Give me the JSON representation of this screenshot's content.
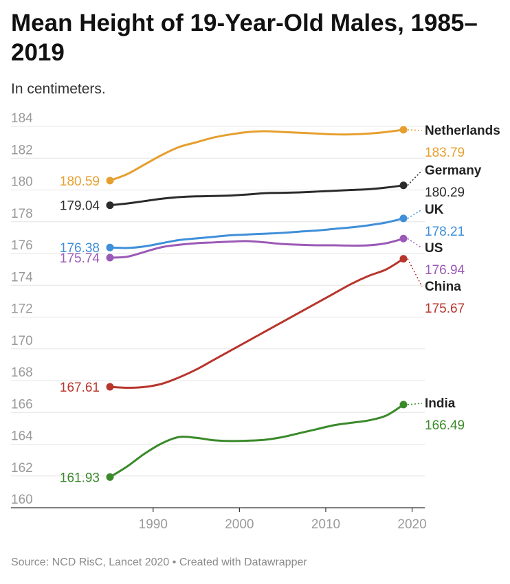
{
  "header": {
    "title": "Mean Height of 19-Year-Old Males, 1985–2019",
    "subtitle": "In centimeters."
  },
  "footer": {
    "source": "Source: NCD RisC, Lancet 2020 • Created with Datawrapper"
  },
  "chart_data": {
    "type": "line",
    "title": "Mean Height of 19-Year-Old Males, 1985–2019",
    "subtitle": "In centimeters.",
    "xlabel": "",
    "ylabel": "",
    "xlim": [
      1985,
      2019
    ],
    "ylim": [
      160,
      184
    ],
    "x_ticks": [
      1990,
      2000,
      2010,
      2020
    ],
    "y_ticks": [
      160,
      162,
      164,
      166,
      168,
      170,
      172,
      174,
      176,
      178,
      180,
      182,
      184
    ],
    "grid": true,
    "legend": "direct labels at line ends",
    "x": [
      1985,
      1987,
      1989,
      1991,
      1993,
      1995,
      1997,
      1999,
      2001,
      2003,
      2005,
      2007,
      2009,
      2011,
      2013,
      2015,
      2017,
      2019
    ],
    "series": [
      {
        "name": "Netherlands",
        "color": "#e69f2e",
        "start_label": "180.59",
        "end_label": "183.79",
        "values": [
          180.59,
          181.0,
          181.6,
          182.2,
          182.7,
          183.0,
          183.3,
          183.5,
          183.65,
          183.7,
          183.65,
          183.6,
          183.55,
          183.5,
          183.5,
          183.55,
          183.65,
          183.79
        ]
      },
      {
        "name": "Germany",
        "color": "#2b2b2b",
        "start_label": "179.04",
        "end_label": "180.29",
        "values": [
          179.04,
          179.15,
          179.3,
          179.45,
          179.55,
          179.6,
          179.62,
          179.65,
          179.72,
          179.8,
          179.82,
          179.85,
          179.9,
          179.95,
          180.0,
          180.05,
          180.15,
          180.29
        ]
      },
      {
        "name": "UK",
        "color": "#3f8fd9",
        "start_label": "176.38",
        "end_label": "178.21",
        "values": [
          176.38,
          176.35,
          176.45,
          176.65,
          176.85,
          176.95,
          177.05,
          177.15,
          177.2,
          177.25,
          177.3,
          177.38,
          177.45,
          177.55,
          177.65,
          177.78,
          177.95,
          178.21
        ]
      },
      {
        "name": "US",
        "color": "#9b59b6",
        "start_label": "175.74",
        "end_label": "176.94",
        "values": [
          175.74,
          175.8,
          176.1,
          176.4,
          176.55,
          176.65,
          176.7,
          176.75,
          176.78,
          176.7,
          176.6,
          176.55,
          176.52,
          176.52,
          176.5,
          176.52,
          176.65,
          176.94
        ]
      },
      {
        "name": "China",
        "color": "#b8352c",
        "start_label": "167.61",
        "end_label": "175.67",
        "values": [
          167.61,
          167.55,
          167.6,
          167.8,
          168.2,
          168.7,
          169.3,
          169.9,
          170.5,
          171.1,
          171.7,
          172.3,
          172.9,
          173.5,
          174.1,
          174.6,
          175.0,
          175.67
        ]
      },
      {
        "name": "India",
        "color": "#3a8a2a",
        "start_label": "161.93",
        "end_label": "166.49",
        "values": [
          161.93,
          162.6,
          163.4,
          164.05,
          164.45,
          164.4,
          164.25,
          164.2,
          164.22,
          164.28,
          164.45,
          164.7,
          164.95,
          165.2,
          165.35,
          165.5,
          165.8,
          166.49
        ]
      }
    ]
  }
}
